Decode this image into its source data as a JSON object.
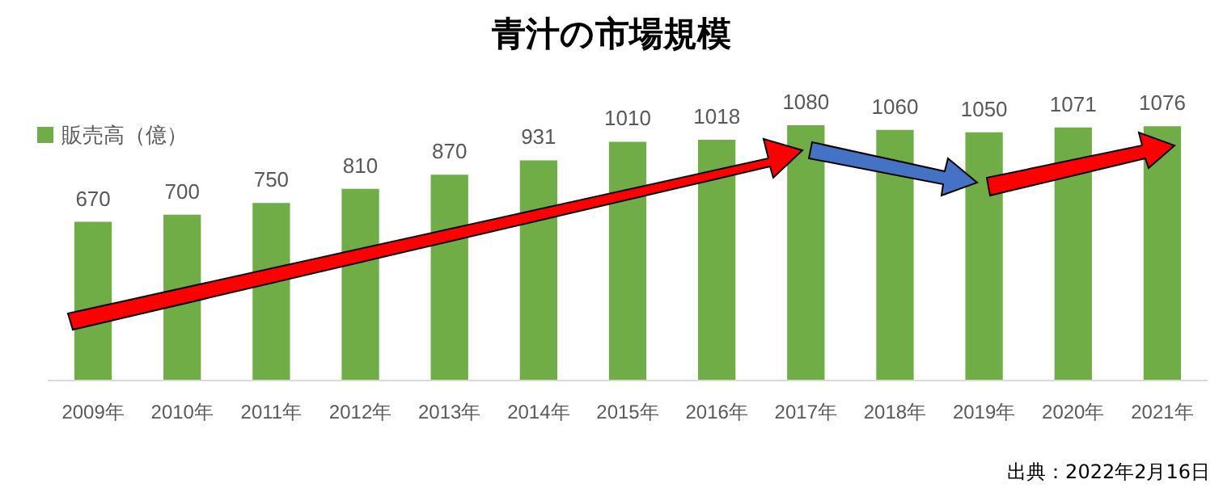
{
  "chart_data": {
    "type": "bar",
    "title": "青汁の市場規模",
    "categories": [
      "2009年",
      "2010年",
      "2011年",
      "2012年",
      "2013年",
      "2014年",
      "2015年",
      "2016年",
      "2017年",
      "2018年",
      "2019年",
      "2020年",
      "2021年"
    ],
    "series": [
      {
        "name": "販売高（億）",
        "color": "#70ad47",
        "values": [
          670,
          700,
          750,
          810,
          870,
          931,
          1010,
          1018,
          1080,
          1060,
          1050,
          1071,
          1076
        ]
      }
    ],
    "data_labels": true,
    "legend": "top left",
    "annotations": [
      "出典：2022年2月16日"
    ]
  }
}
